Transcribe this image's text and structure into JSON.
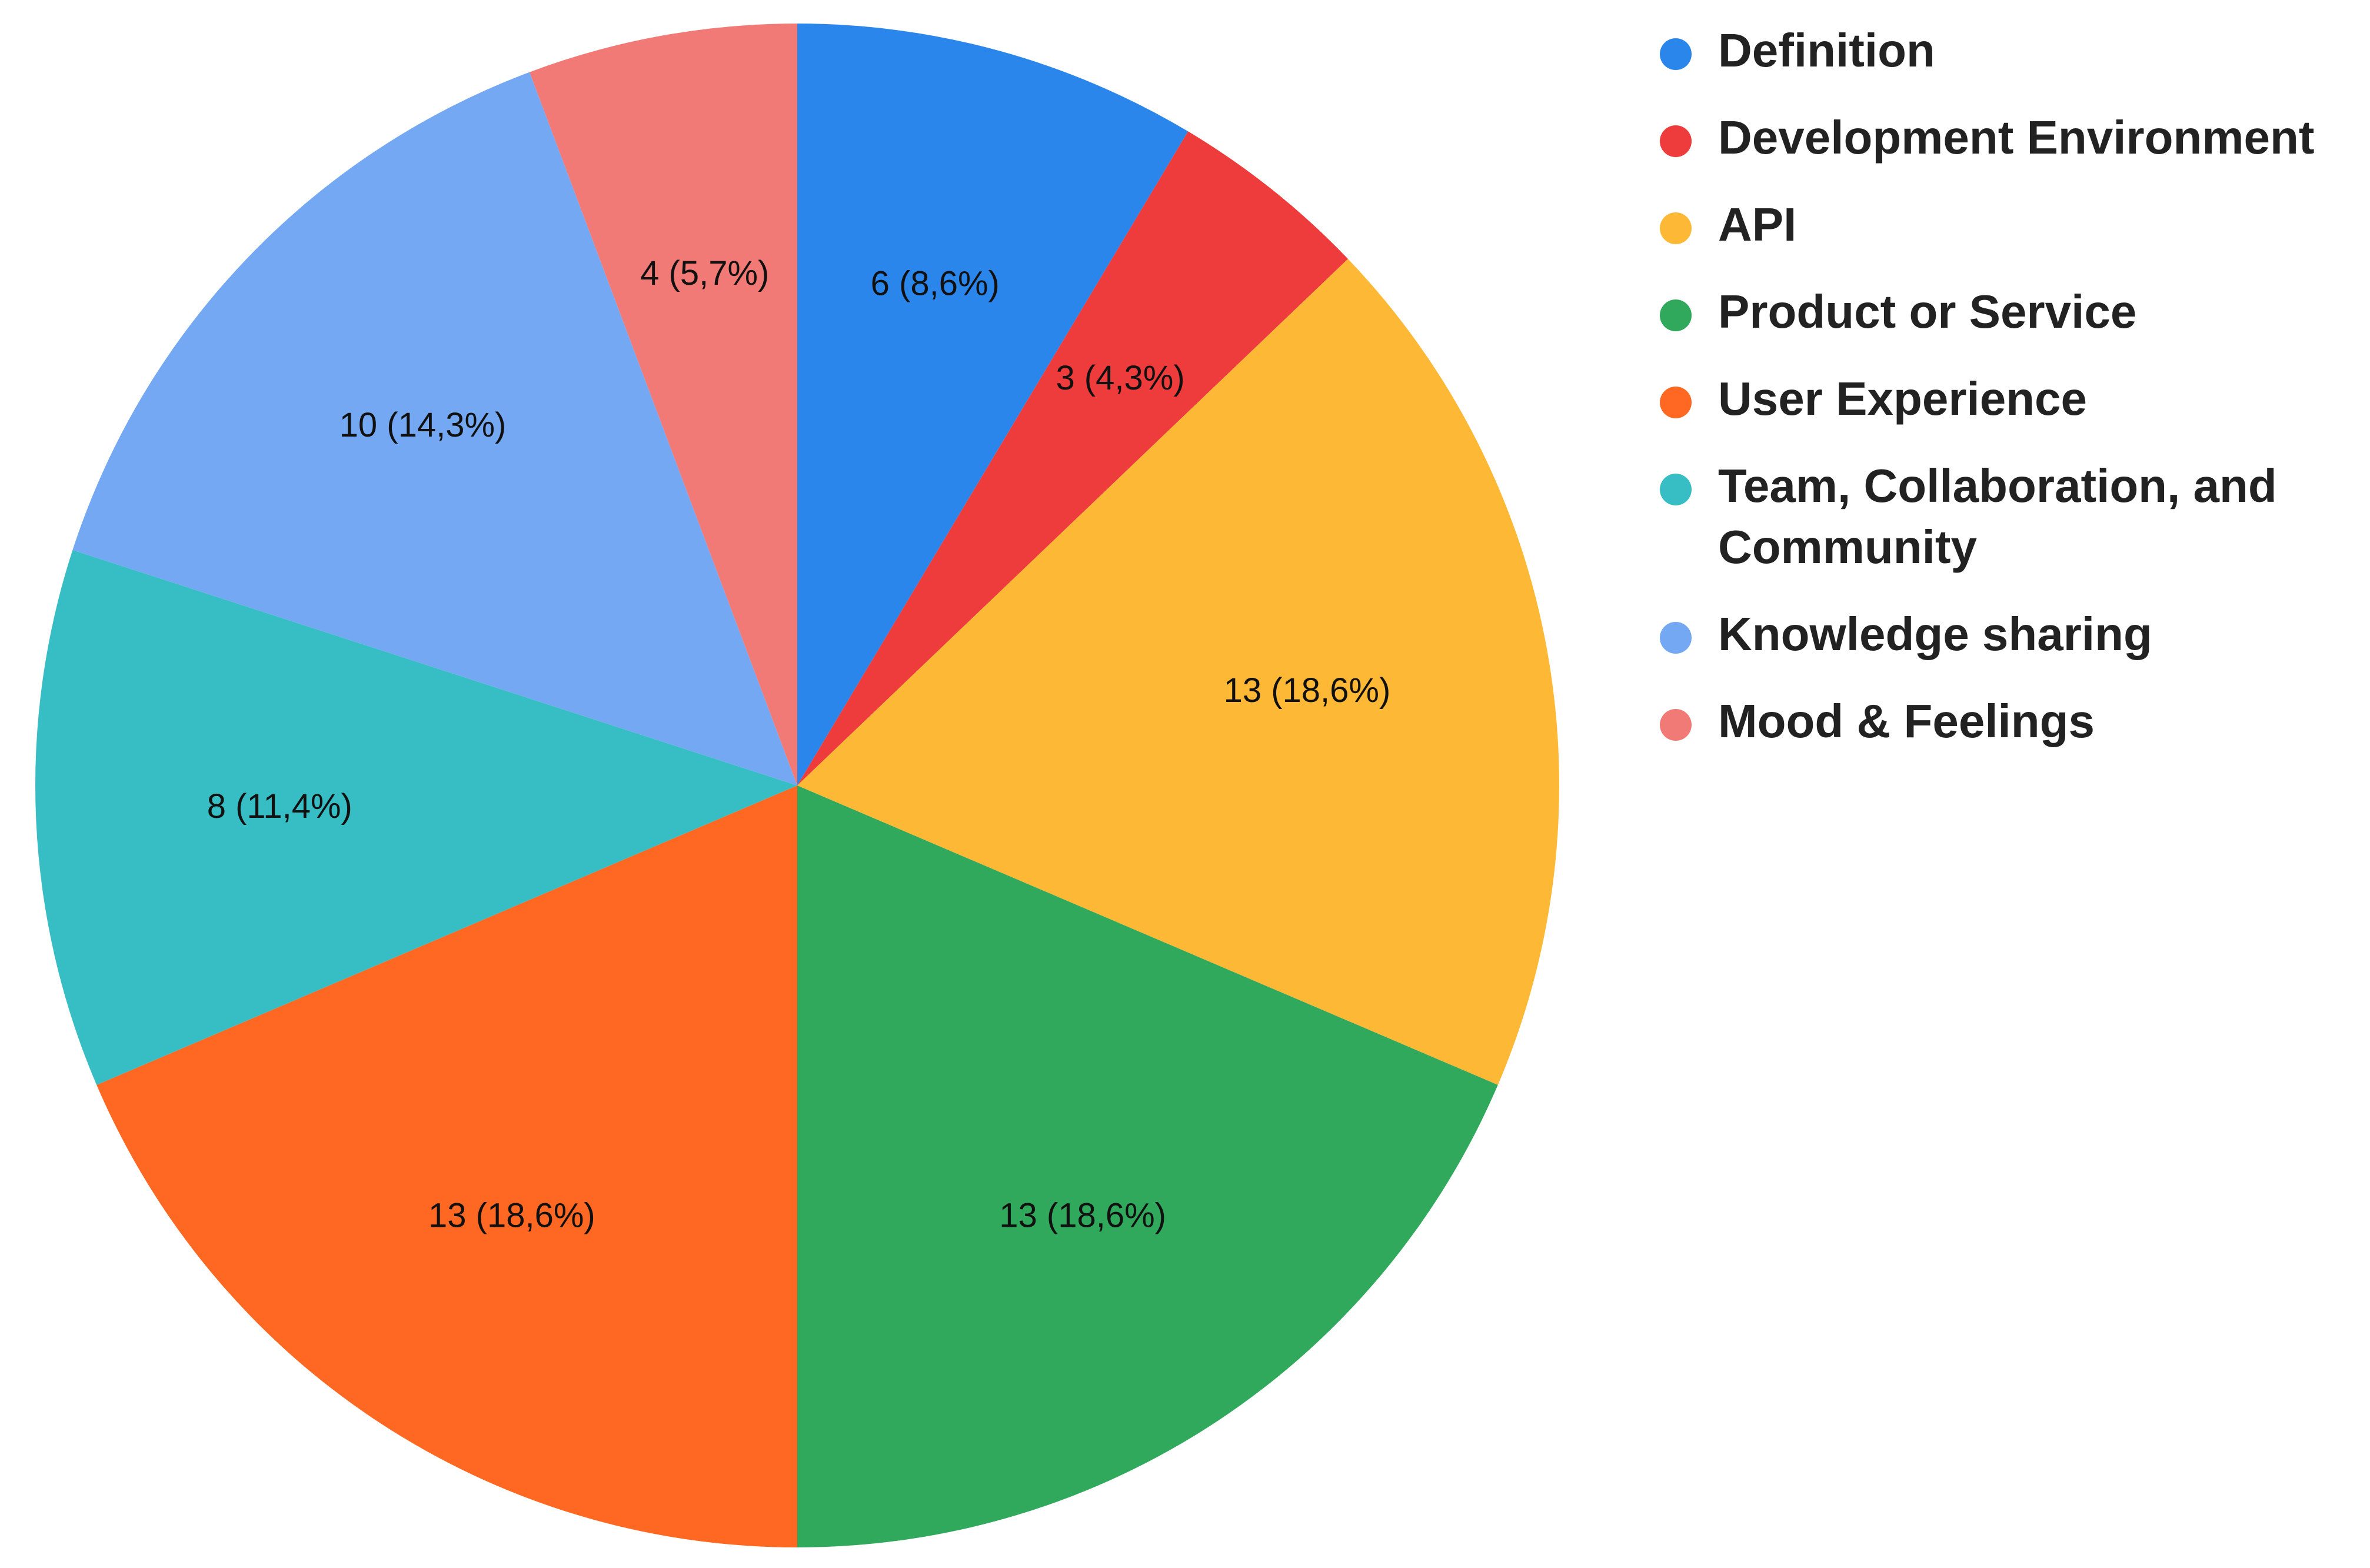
{
  "chart_data": {
    "type": "pie",
    "title": "",
    "legend_position": "right",
    "start_angle_deg": 0,
    "direction": "clockwise",
    "slices": [
      {
        "name": "Definition",
        "value": 6,
        "label": "6 (8,6%)",
        "color": "#2b86eb"
      },
      {
        "name": "Development Environment",
        "value": 3,
        "label": "3 (4,3%)",
        "color": "#ee3b3b"
      },
      {
        "name": "API",
        "value": 13,
        "label": "13 (18,6%)",
        "color": "#fdb935"
      },
      {
        "name": "Product or Service",
        "value": 13,
        "label": "13 (18,6%)",
        "color": "#31a95d"
      },
      {
        "name": "User Experience",
        "value": 13,
        "label": "13 (18,6%)",
        "color": "#ff6822"
      },
      {
        "name": "Team, Collaboration, and Community",
        "value": 8,
        "label": "8 (11,4%)",
        "color": "#36bec4"
      },
      {
        "name": "Knowledge sharing",
        "value": 10,
        "label": "10 (14,3%)",
        "color": "#74a8f3"
      },
      {
        "name": "Mood & Feelings",
        "value": 4,
        "label": "4 (5,7%)",
        "color": "#f27a76"
      }
    ],
    "legend": [
      {
        "lines": [
          "Definition"
        ]
      },
      {
        "lines": [
          "Development Environment"
        ]
      },
      {
        "lines": [
          "API"
        ]
      },
      {
        "lines": [
          "Product or Service"
        ]
      },
      {
        "lines": [
          "User Experience"
        ]
      },
      {
        "lines": [
          "Team, Collaboration, and",
          "Community"
        ]
      },
      {
        "lines": [
          "Knowledge sharing"
        ]
      },
      {
        "lines": [
          "Mood & Feelings"
        ]
      }
    ]
  }
}
